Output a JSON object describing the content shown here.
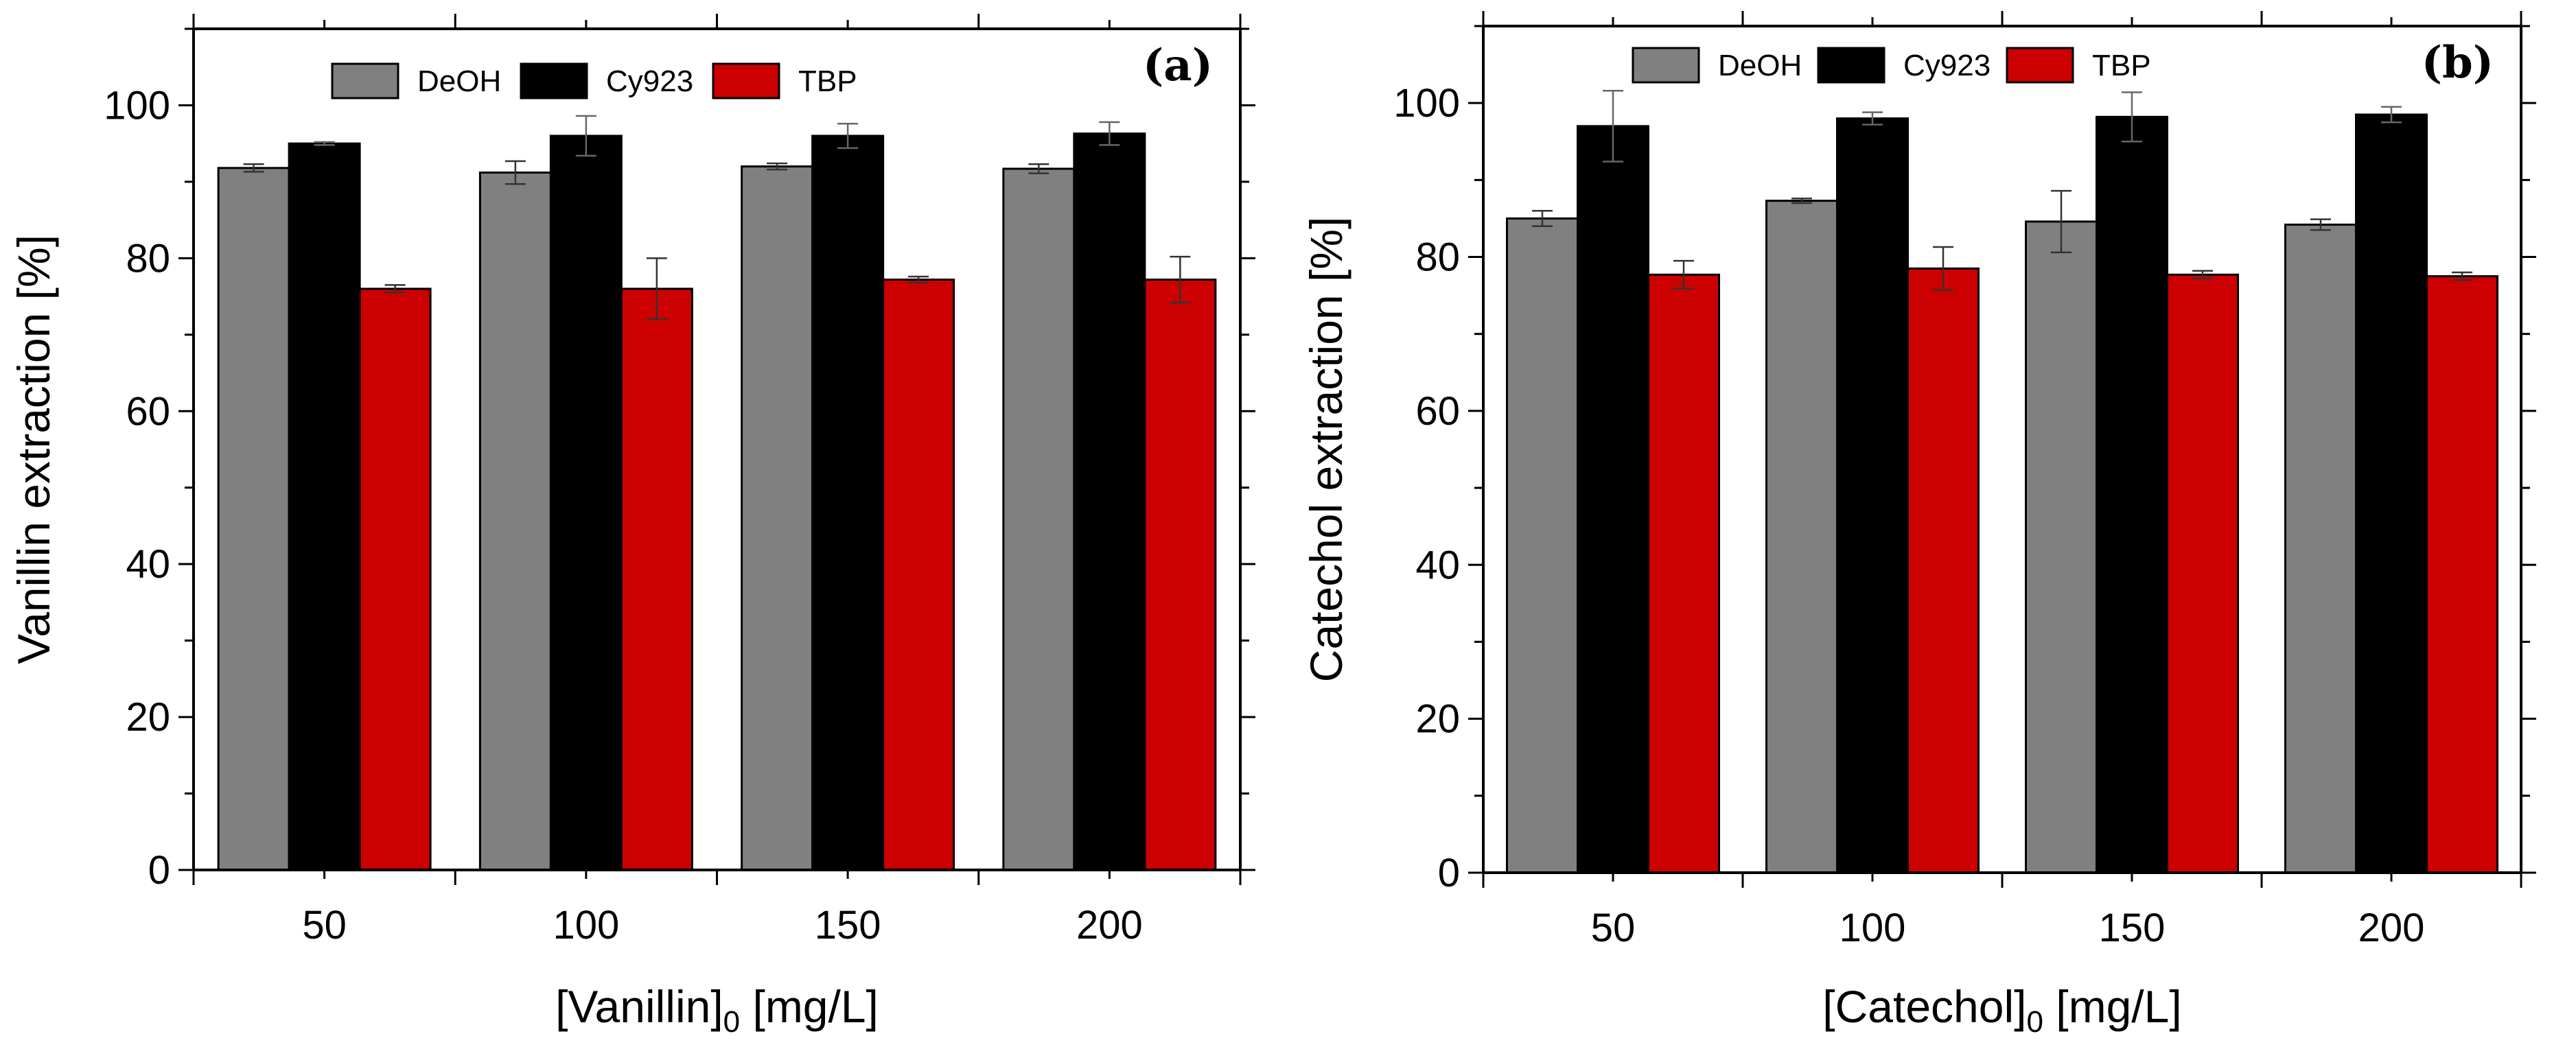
{
  "chart_data": [
    {
      "type": "bar",
      "panel_label": "(a)",
      "categories": [
        "50",
        "100",
        "150",
        "200"
      ],
      "series": [
        {
          "name": "DeOH",
          "color": "#808080",
          "values": [
            91.8,
            91.2,
            92.0,
            91.7
          ],
          "errors": [
            0.5,
            1.5,
            0.4,
            0.6
          ]
        },
        {
          "name": "Cy923",
          "color": "#000000",
          "values": [
            95.0,
            96.0,
            96.0,
            96.3
          ],
          "errors": [
            0.2,
            2.6,
            1.6,
            1.5
          ]
        },
        {
          "name": "TBP",
          "color": "#cc0000",
          "values": [
            76.0,
            76.0,
            77.2,
            77.2
          ],
          "errors": [
            0.5,
            4.0,
            0.4,
            3.0
          ]
        }
      ],
      "xlabel_main": "[Vanillin]",
      "xlabel_sub": "0",
      "xlabel_unit": " [mg/L]",
      "ylabel": "Vanillin extraction [%]",
      "ylim": [
        0,
        110
      ],
      "yticks": [
        "0",
        "20",
        "40",
        "60",
        "80",
        "100"
      ],
      "legend_position": "top"
    },
    {
      "type": "bar",
      "panel_label": "(b)",
      "categories": [
        "50",
        "100",
        "150",
        "200"
      ],
      "series": [
        {
          "name": "DeOH",
          "color": "#808080",
          "values": [
            85.0,
            87.3,
            84.6,
            84.2
          ],
          "errors": [
            1.0,
            0.3,
            4.0,
            0.7
          ]
        },
        {
          "name": "Cy923",
          "color": "#000000",
          "values": [
            97.0,
            98.0,
            98.2,
            98.5
          ],
          "errors": [
            4.6,
            0.8,
            3.2,
            1.0
          ]
        },
        {
          "name": "TBP",
          "color": "#cc0000",
          "values": [
            77.7,
            78.5,
            77.7,
            77.5
          ],
          "errors": [
            1.8,
            2.8,
            0.5,
            0.5
          ]
        }
      ],
      "xlabel_main": "[Catechol]",
      "xlabel_sub": "0",
      "xlabel_unit": " [mg/L]",
      "ylabel": "Catechol extraction [%]",
      "ylim": [
        0,
        110
      ],
      "yticks": [
        "0",
        "20",
        "40",
        "60",
        "80",
        "100"
      ],
      "legend_position": "top"
    }
  ]
}
